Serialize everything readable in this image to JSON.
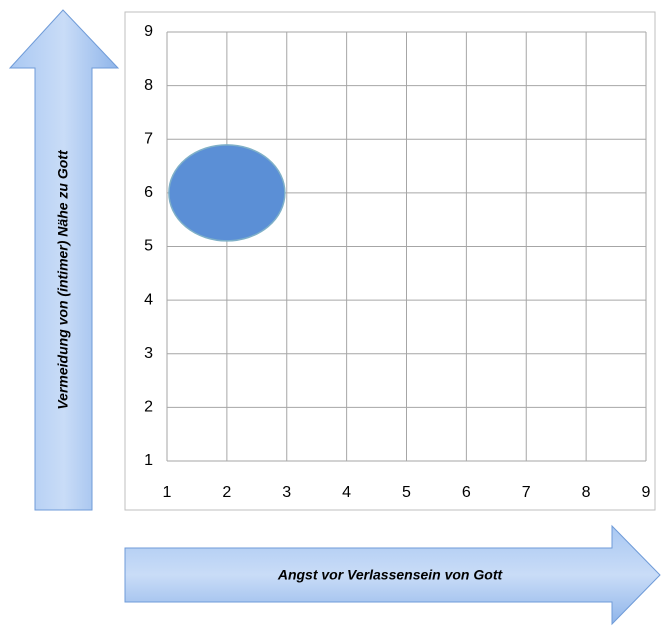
{
  "chart_data": {
    "type": "scatter",
    "x": [
      2
    ],
    "y": [
      6
    ],
    "color": "#5b8fd6",
    "xlabel": "Angst vor Verlassensein von Gott",
    "ylabel": "Vermeidung von (intimer) Nähe zu Gott",
    "xlim": [
      1,
      9
    ],
    "ylim": [
      1,
      9
    ],
    "xticks": [
      1,
      2,
      3,
      4,
      5,
      6,
      7,
      8,
      9
    ],
    "yticks": [
      1,
      2,
      3,
      4,
      5,
      6,
      7,
      8,
      9
    ],
    "grid": true
  }
}
